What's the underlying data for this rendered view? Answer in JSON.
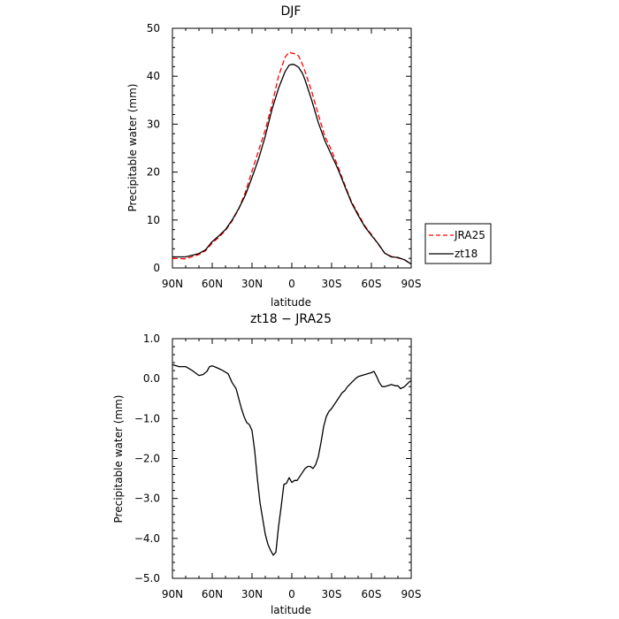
{
  "chart_data": [
    {
      "type": "line",
      "title": "DJF",
      "xlabel": "latitude",
      "ylabel": "Precipitable water (mm)",
      "xlim": [
        90,
        -90
      ],
      "ylim": [
        0,
        50
      ],
      "x_tick_values": [
        90,
        60,
        30,
        0,
        -30,
        -60,
        -90
      ],
      "x_tick_labels": [
        "90N",
        "60N",
        "30N",
        "0",
        "30S",
        "60S",
        "90S"
      ],
      "y_tick_values": [
        0,
        10,
        20,
        30,
        40,
        50
      ],
      "y_tick_labels": [
        "0",
        "10",
        "20",
        "30",
        "40",
        "50"
      ],
      "legend": "right",
      "series": [
        {
          "name": "JRA25",
          "color": "#ff0000",
          "dash": "dashed",
          "x": [
            90,
            80,
            70,
            65,
            60,
            55,
            50,
            45,
            40,
            35,
            30,
            25,
            20,
            15,
            10,
            5,
            2,
            0,
            -2,
            -5,
            -8,
            -10,
            -15,
            -20,
            -25,
            -30,
            -35,
            -40,
            -45,
            -50,
            -55,
            -60,
            -65,
            -70,
            -75,
            -80,
            -85,
            -90
          ],
          "y": [
            2.0,
            1.9,
            2.8,
            3.6,
            5.2,
            6.4,
            7.8,
            9.8,
            12.3,
            15.8,
            20.2,
            24.5,
            28.8,
            34.0,
            40.0,
            44.0,
            45.0,
            44.8,
            44.7,
            44.3,
            42.5,
            41.0,
            36.8,
            32.0,
            27.4,
            24.5,
            21.0,
            17.3,
            13.8,
            11.3,
            8.8,
            7.0,
            5.0,
            3.1,
            2.4,
            2.1,
            1.7,
            0.8
          ]
        },
        {
          "name": "zt18",
          "color": "#000000",
          "dash": "solid",
          "x": [
            90,
            80,
            70,
            65,
            60,
            55,
            50,
            45,
            40,
            35,
            30,
            25,
            20,
            15,
            10,
            5,
            2,
            0,
            -2,
            -5,
            -8,
            -10,
            -15,
            -20,
            -25,
            -30,
            -35,
            -40,
            -45,
            -50,
            -55,
            -60,
            -65,
            -70,
            -75,
            -80,
            -85,
            -90
          ],
          "y": [
            2.3,
            2.3,
            3.0,
            3.8,
            5.5,
            6.7,
            8.0,
            10.0,
            12.4,
            15.2,
            18.9,
            22.8,
            27.5,
            33.0,
            37.5,
            41.0,
            42.3,
            42.5,
            42.4,
            41.9,
            40.6,
            39.2,
            35.0,
            30.3,
            26.5,
            23.5,
            20.5,
            17.0,
            13.6,
            11.0,
            8.6,
            6.8,
            5.1,
            3.1,
            2.3,
            2.2,
            1.7,
            0.8
          ]
        }
      ]
    },
    {
      "type": "line",
      "title": "zt18 − JRA25",
      "xlabel": "latitude",
      "ylabel": "Precipitable water (mm)",
      "xlim": [
        90,
        -90
      ],
      "ylim": [
        -5,
        1
      ],
      "x_tick_values": [
        90,
        60,
        30,
        0,
        -30,
        -60,
        -90
      ],
      "x_tick_labels": [
        "90N",
        "60N",
        "30N",
        "0",
        "30S",
        "60S",
        "90S"
      ],
      "y_tick_values": [
        1,
        0,
        -1,
        -2,
        -3,
        -4,
        -5
      ],
      "y_tick_labels": [
        "1.0",
        "0.0",
        "−1.0",
        "−2.0",
        "−3.0",
        "−4.0",
        "−5.0"
      ],
      "series": [
        {
          "color": "#000000",
          "dash": "solid",
          "x": [
            90,
            85,
            80,
            75,
            70,
            67,
            64,
            62,
            60,
            57,
            55,
            52,
            48,
            45,
            42,
            40,
            38,
            36,
            34,
            32,
            30,
            28,
            26,
            24,
            22,
            20,
            18,
            16,
            14,
            12,
            10,
            8,
            6,
            4,
            2,
            0,
            -2,
            -4,
            -6,
            -8,
            -10,
            -12,
            -14,
            -16,
            -18,
            -20,
            -22,
            -24,
            -26,
            -28,
            -30,
            -32,
            -34,
            -36,
            -38,
            -40,
            -42,
            -45,
            -48,
            -50,
            -55,
            -60,
            -62,
            -64,
            -66,
            -68,
            -70,
            -75,
            -78,
            -80,
            -82,
            -85,
            -88,
            -90
          ],
          "y": [
            0.35,
            0.3,
            0.3,
            0.2,
            0.08,
            0.1,
            0.18,
            0.3,
            0.32,
            0.28,
            0.25,
            0.2,
            0.12,
            -0.1,
            -0.25,
            -0.5,
            -0.75,
            -0.95,
            -1.1,
            -1.15,
            -1.3,
            -1.8,
            -2.5,
            -3.1,
            -3.5,
            -3.9,
            -4.15,
            -4.3,
            -4.42,
            -4.35,
            -3.7,
            -3.2,
            -2.65,
            -2.62,
            -2.48,
            -2.6,
            -2.55,
            -2.55,
            -2.45,
            -2.35,
            -2.25,
            -2.2,
            -2.2,
            -2.25,
            -2.15,
            -1.95,
            -1.6,
            -1.2,
            -0.95,
            -0.82,
            -0.75,
            -0.65,
            -0.55,
            -0.45,
            -0.35,
            -0.3,
            -0.2,
            -0.1,
            0.0,
            0.05,
            0.1,
            0.15,
            0.18,
            0.05,
            -0.1,
            -0.2,
            -0.2,
            -0.15,
            -0.18,
            -0.18,
            -0.25,
            -0.2,
            -0.1,
            -0.05
          ]
        }
      ]
    }
  ]
}
